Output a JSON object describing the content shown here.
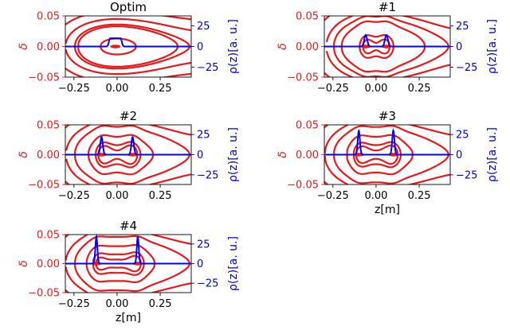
{
  "chart_data": [
    {
      "type": "line",
      "title": "Optim",
      "xlabel": "",
      "ylabel_left": "δ",
      "ylabel_right": "ρ(z)[a. u.]",
      "xlim": [
        -0.3,
        0.43
      ],
      "ylim_left": [
        -0.05,
        0.05
      ],
      "ylim_right": [
        -37,
        37
      ],
      "xticks": [
        "−0.25",
        "0.00",
        "0.25"
      ],
      "yticks_left": [
        "0.05",
        "0.00",
        "−0.05"
      ],
      "yticks_right": [
        "25",
        "0",
        "−25"
      ],
      "separatrix_delta_max": 0.036,
      "contour_levels": [
        0.033,
        0.013
      ],
      "peaks": [
        {
          "z": -0.01,
          "width": 0.03,
          "height": 10,
          "shape": "plateau"
        }
      ]
    },
    {
      "type": "line",
      "title": "#1",
      "xlabel": "",
      "ylabel_left": "δ",
      "ylabel_right": "ρ(z)[a. u.]",
      "xlim": [
        -0.3,
        0.43
      ],
      "ylim_left": [
        -0.05,
        0.05
      ],
      "ylim_right": [
        -37,
        37
      ],
      "xticks": [
        "−0.25",
        "0.00",
        "0.25"
      ],
      "yticks_left": [
        "0.05",
        "0.00",
        "−0.05"
      ],
      "yticks_right": [
        "25",
        "0",
        "−25"
      ],
      "separatrix_delta_max": 0.046,
      "contour_levels": [
        0.04,
        0.016,
        0.006
      ],
      "peaks": [
        {
          "z": -0.06,
          "width": 0.012,
          "height": 14
        },
        {
          "z": 0.06,
          "width": 0.012,
          "height": 14
        }
      ]
    },
    {
      "type": "line",
      "title": "#2",
      "xlabel": "",
      "ylabel_left": "δ",
      "ylabel_right": "ρ(z)[a. u.]",
      "xlim": [
        -0.3,
        0.43
      ],
      "ylim_left": [
        -0.05,
        0.05
      ],
      "ylim_right": [
        -37,
        37
      ],
      "xticks": [
        "−0.25",
        "0.00",
        "0.25"
      ],
      "yticks_left": [
        "0.05",
        "0.00",
        "−0.05"
      ],
      "yticks_right": [
        "25",
        "0",
        "−25"
      ],
      "separatrix_delta_max": 0.046,
      "contour_levels": [
        0.03,
        0.016,
        0.007
      ],
      "peaks": [
        {
          "z": -0.09,
          "width": 0.01,
          "height": 22
        },
        {
          "z": 0.09,
          "width": 0.01,
          "height": 22
        }
      ]
    },
    {
      "type": "line",
      "title": "#3",
      "xlabel": "z[m]",
      "ylabel_left": "δ",
      "ylabel_right": "ρ(z)[a. u.]",
      "xlim": [
        -0.3,
        0.43
      ],
      "ylim_left": [
        -0.05,
        0.05
      ],
      "ylim_right": [
        -37,
        37
      ],
      "xticks": [
        "−0.25",
        "0.00",
        "0.25"
      ],
      "yticks_left": [
        "0.05",
        "0.00",
        "−0.05"
      ],
      "yticks_right": [
        "25",
        "0",
        "−25"
      ],
      "separatrix_delta_max": 0.046,
      "contour_levels": [
        0.03,
        0.016,
        0.007
      ],
      "peaks": [
        {
          "z": -0.1,
          "width": 0.009,
          "height": 30
        },
        {
          "z": 0.1,
          "width": 0.009,
          "height": 30
        }
      ]
    },
    {
      "type": "line",
      "title": "#4",
      "xlabel": "z[m]",
      "ylabel_left": "δ",
      "ylabel_right": "ρ(z)[a. u.]",
      "xlim": [
        -0.3,
        0.43
      ],
      "ylim_left": [
        -0.05,
        0.05
      ],
      "ylim_right": [
        -37,
        37
      ],
      "xticks": [
        "−0.25",
        "0.00",
        "0.25"
      ],
      "yticks_left": [
        "0.05",
        "0.00",
        "−0.05"
      ],
      "yticks_right": [
        "25",
        "0",
        "−25"
      ],
      "separatrix_delta_max": 0.046,
      "contour_levels": [
        0.03,
        0.016,
        0.007
      ],
      "peaks": [
        {
          "z": -0.12,
          "width": 0.008,
          "height": 35
        },
        {
          "z": 0.12,
          "width": 0.008,
          "height": 35
        }
      ]
    }
  ],
  "colors": {
    "contour": "#e41a1c",
    "density": "#0000ff",
    "axis_text_left": "#e41a1c",
    "axis_text_right": "#0000cc"
  }
}
